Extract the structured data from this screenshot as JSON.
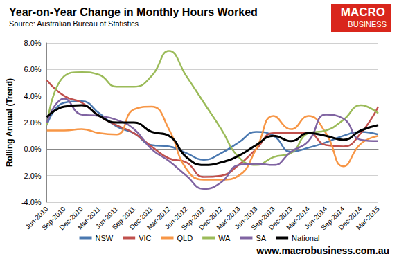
{
  "chart_data": {
    "type": "line",
    "title": "Year-on-Year Change in Monthly Hours Worked",
    "subtitle": "Source: Australian Bureau of Statistics",
    "y_label": "Rolling Annual (Trend)",
    "annotations": [
      "MACRO",
      "BUSINESS",
      "www.macrobusiness.com.au"
    ],
    "categories": [
      "Jun-2010",
      "Sep-2010",
      "Dec-2010",
      "Mar-2011",
      "Jun-2011",
      "Sep-2011",
      "Dec-2011",
      "Mar-2012",
      "Jun-2012",
      "Sep-2012",
      "Dec-2012",
      "Mar-2013",
      "Jun-2013",
      "Sep-2013",
      "Dec-2013",
      "Mar-2014",
      "Jun-2014",
      "Sep-2014",
      "Dec-2014",
      "Mar-2015"
    ],
    "series": [
      {
        "name": "NSW",
        "color": "#4a78b0",
        "values": [
          1.8,
          3.5,
          3.6,
          2.7,
          1.7,
          1.2,
          0.3,
          0.2,
          -0.3,
          -0.8,
          -0.3,
          0.5,
          1.3,
          1.0,
          -0.2,
          0.1,
          0.5,
          1.0,
          1.3,
          1.1
        ]
      },
      {
        "name": "VIC",
        "color": "#c0504d",
        "values": [
          5.2,
          4.0,
          3.5,
          2.5,
          1.8,
          1.2,
          0.2,
          -0.7,
          -1.0,
          -2.1,
          -2.0,
          -1.2,
          0.0,
          1.2,
          1.2,
          1.2,
          0.3,
          0.2,
          1.2,
          3.2
        ]
      },
      {
        "name": "QLD",
        "color": "#f79646",
        "values": [
          1.4,
          1.4,
          1.5,
          1.2,
          1.1,
          3.0,
          3.2,
          1.5,
          -1.5,
          -2.3,
          -2.3,
          -2.0,
          0.0,
          2.5,
          1.5,
          2.5,
          1.2,
          -1.3,
          0.4,
          1.0
        ]
      },
      {
        "name": "WA",
        "color": "#9bbb59",
        "values": [
          1.8,
          5.5,
          5.8,
          5.6,
          4.7,
          4.7,
          5.5,
          7.4,
          5.5,
          3.5,
          1.5,
          -0.6,
          -1.2,
          -0.6,
          -0.3,
          1.2,
          1.4,
          2.2,
          3.3,
          2.7
        ]
      },
      {
        "name": "SA",
        "color": "#8064a2",
        "values": [
          2.0,
          3.8,
          2.6,
          2.5,
          2.2,
          1.5,
          0.0,
          -0.9,
          -2.0,
          -3.0,
          -2.5,
          -1.2,
          -1.1,
          -1.2,
          -0.2,
          0.6,
          2.6,
          2.3,
          0.7,
          0.6
        ]
      },
      {
        "name": "National",
        "color": "#000000",
        "values": [
          2.4,
          3.2,
          3.3,
          2.5,
          2.0,
          2.0,
          1.3,
          1.0,
          -0.6,
          -1.2,
          -1.0,
          -0.5,
          0.3,
          1.0,
          0.6,
          1.2,
          1.0,
          0.7,
          1.4,
          1.8
        ]
      }
    ],
    "ylim": [
      -4,
      8
    ],
    "yticks": [
      {
        "value": -4,
        "label": "-4.0%"
      },
      {
        "value": -2,
        "label": "-2.0%"
      },
      {
        "value": 0,
        "label": "0.0%"
      },
      {
        "value": 2,
        "label": "2.0%"
      },
      {
        "value": 4,
        "label": "4.0%"
      },
      {
        "value": 6,
        "label": "6.0%"
      },
      {
        "value": 8,
        "label": "8.0%"
      }
    ],
    "grid": true,
    "legend": "bottom"
  }
}
